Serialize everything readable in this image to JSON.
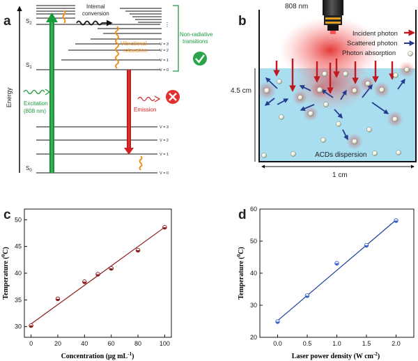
{
  "panels": {
    "a": "a",
    "b": "b",
    "c": "c",
    "d": "d"
  },
  "panel_a": {
    "energy_axis": "Energy",
    "s2": "S",
    "s2_sub": "2",
    "s1": "S",
    "s1_sub": "1",
    "s0": "S",
    "s0_sub": "0",
    "internal_conversion_line1": "Internal",
    "internal_conversion_line2": "conversion",
    "vibrational_line1": "Vibrational",
    "vibrational_line2": "relaxation",
    "nonradiative_line1": "Non-radiative",
    "nonradiative_line2": "transitions",
    "excitation_line1": "Excitation",
    "excitation_line2": "(808 nm)",
    "emission": "Emission",
    "dots": "⋮",
    "levels_upper": [
      "V = 3",
      "V = 2",
      "V = 1",
      "V = 0"
    ],
    "levels_lower": [
      "V = 3",
      "V = 2",
      "V = 1",
      "V = 0"
    ],
    "colors": {
      "green": "#1a9b3c",
      "red": "#d42020",
      "orange": "#f0901e"
    }
  },
  "panel_b": {
    "laser": "808 nm",
    "incident": "Incident photon",
    "scattered": "Scattered photon",
    "absorption": "Photon absorption",
    "height": "4.5 cm",
    "width": "1 cm",
    "dispersion": "ACDs dispersion",
    "colors": {
      "liquid": "#a8def0",
      "incident": "#c0181e",
      "scattered": "#253c8c"
    }
  },
  "chart_data": [
    {
      "panel": "c",
      "type": "scatter",
      "xlabel": "Concentration (μg mL",
      "xlabel_sup": "-1",
      "xlabel_end": ")",
      "ylabel": "Temperature (",
      "ylabel_sup": "0",
      "ylabel_end": "C)",
      "xlim": [
        -5,
        105
      ],
      "ylim": [
        28,
        52
      ],
      "xticks": [
        0,
        20,
        40,
        60,
        80,
        100
      ],
      "yticks": [
        30,
        35,
        40,
        45,
        50
      ],
      "x": [
        0,
        20,
        40,
        50,
        60,
        80,
        100
      ],
      "y": [
        30.2,
        35.2,
        38.4,
        39.8,
        40.9,
        44.3,
        48.6
      ],
      "fit": {
        "x0": 0,
        "y0": 30.5,
        "x1": 100,
        "y1": 48.6
      },
      "colors": {
        "line": "#8b1a1a",
        "marker": "#8b1a1a"
      }
    },
    {
      "panel": "d",
      "type": "scatter",
      "xlabel": "Laser power density (W cm",
      "xlabel_sup": "-2",
      "xlabel_end": ")",
      "ylabel": "Temperature (",
      "ylabel_sup": "0",
      "ylabel_end": "C)",
      "xlim": [
        -0.3,
        2.3
      ],
      "ylim": [
        20,
        60
      ],
      "xticks": [
        0.0,
        0.5,
        1.0,
        1.5,
        2.0
      ],
      "xtick_labels": [
        "0.0",
        "0.5",
        "1.0",
        "1.5",
        "2.0"
      ],
      "yticks": [
        20,
        30,
        40,
        50,
        60
      ],
      "x": [
        0.0,
        0.5,
        1.0,
        1.5,
        2.0
      ],
      "y": [
        24.9,
        33.0,
        43.1,
        48.7,
        56.4
      ],
      "fit": {
        "x0": 0,
        "y0": 25.2,
        "x1": 2.0,
        "y1": 56.6
      },
      "colors": {
        "line": "#1d3f99",
        "marker": "#3a5fc8"
      }
    }
  ]
}
